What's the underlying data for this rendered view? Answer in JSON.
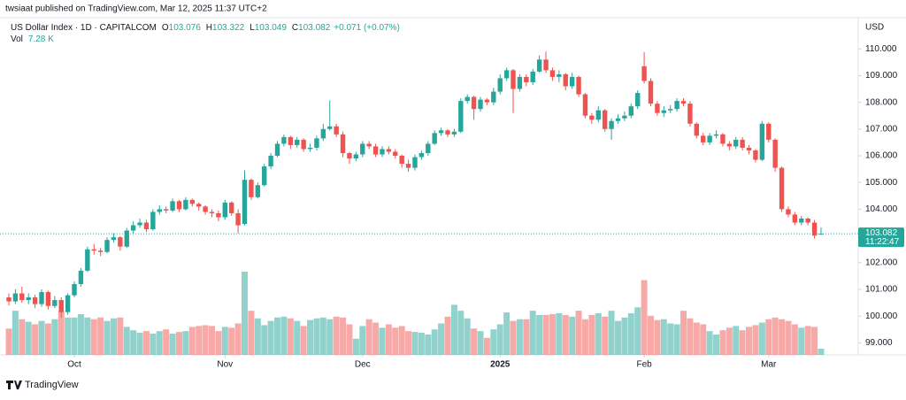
{
  "header": {
    "published": "twsiaat published on TradingView.com, Mar 12, 2025 11:37 UTC+2",
    "brand": "TradingView"
  },
  "chart_data": {
    "type": "candlestick",
    "symbol": "US Dollar Index · 1D · CAPITALCOM",
    "legend": [
      {
        "label": "O",
        "value": "103.076"
      },
      {
        "label": "H",
        "value": "103.322"
      },
      {
        "label": "L",
        "value": "103.049"
      },
      {
        "label": "C",
        "value": "103.082"
      }
    ],
    "change": "+0.071 (+0.07%)",
    "volume_label": "Vol",
    "volume_value": "7.28 K",
    "currency": "USD",
    "last_price": {
      "value": 103.082,
      "label": "103.082"
    },
    "countdown": "11:22:47",
    "up_color": "#26a69a",
    "down_color": "#ef5350",
    "grid": false,
    "ylim": [
      98.55,
      111.1
    ],
    "yticks": [
      {
        "value": 99,
        "label": "99.000"
      },
      {
        "value": 100,
        "label": "100.000"
      },
      {
        "value": 101,
        "label": "101.000"
      },
      {
        "value": 102,
        "label": "102.000"
      },
      {
        "value": 103,
        "label": "103.000"
      },
      {
        "value": 104,
        "label": "104.000"
      },
      {
        "value": 105,
        "label": "105.000"
      },
      {
        "value": 106,
        "label": "106.000"
      },
      {
        "value": 107,
        "label": "107.000"
      },
      {
        "value": 108,
        "label": "108.000"
      },
      {
        "value": 109,
        "label": "109.000"
      },
      {
        "value": 110,
        "label": "110.000"
      }
    ],
    "xticks": [
      {
        "value": 10,
        "label": "Oct"
      },
      {
        "value": 33,
        "label": "Nov"
      },
      {
        "value": 54,
        "label": "Dec"
      },
      {
        "value": 75,
        "label": "2025"
      },
      {
        "value": 97,
        "label": "Feb"
      },
      {
        "value": 116,
        "label": "Mar"
      }
    ],
    "open": [
      100.7,
      100.55,
      100.85,
      100.6,
      100.7,
      100.45,
      100.9,
      100.38,
      100.6,
      100.15,
      100.78,
      101.2,
      101.7,
      102.5,
      102.45,
      102.4,
      102.85,
      102.95,
      102.6,
      103.2,
      103.4,
      103.5,
      103.25,
      103.9,
      104.0,
      103.95,
      104.3,
      104.0,
      104.35,
      104.2,
      104.1,
      103.9,
      103.85,
      103.7,
      104.25,
      103.85,
      103.45,
      105.1,
      104.45,
      104.9,
      105.6,
      106.0,
      106.45,
      106.7,
      106.4,
      106.6,
      106.25,
      106.3,
      106.65,
      107.0,
      107.1,
      106.8,
      106.1,
      105.9,
      106.05,
      106.45,
      106.35,
      106.05,
      106.25,
      106.15,
      106.0,
      105.7,
      105.55,
      105.95,
      106.1,
      106.45,
      106.85,
      106.95,
      106.8,
      106.9,
      108.05,
      108.2,
      107.75,
      108.1,
      108.0,
      108.4,
      108.9,
      109.2,
      108.5,
      108.95,
      108.75,
      109.15,
      109.6,
      109.2,
      108.95,
      109.05,
      108.6,
      108.95,
      108.3,
      107.5,
      107.35,
      107.7,
      107.0,
      107.3,
      107.4,
      107.5,
      107.85,
      109.35,
      108.8,
      107.95,
      107.6,
      107.7,
      107.75,
      108.05,
      107.95,
      107.2,
      106.75,
      106.5,
      106.75,
      106.8,
      106.45,
      106.35,
      106.6,
      106.3,
      106.2,
      105.85,
      107.2,
      106.6,
      105.55,
      104.0,
      103.8,
      103.5,
      103.65,
      103.5,
      103.076
    ],
    "high": [
      100.85,
      101.0,
      101.1,
      100.85,
      100.8,
      101.0,
      100.95,
      100.75,
      100.7,
      100.85,
      101.3,
      101.8,
      102.6,
      102.7,
      102.55,
      102.95,
      103.1,
      103.0,
      103.3,
      103.55,
      103.65,
      103.6,
      104.0,
      104.15,
      104.1,
      104.4,
      104.35,
      104.45,
      104.4,
      104.25,
      104.15,
      104.0,
      103.95,
      104.35,
      104.3,
      104.0,
      105.45,
      105.15,
      105.0,
      105.7,
      106.1,
      106.55,
      106.8,
      106.75,
      106.7,
      106.65,
      106.45,
      106.75,
      107.2,
      108.07,
      107.2,
      106.9,
      106.15,
      106.15,
      106.55,
      106.55,
      106.45,
      106.35,
      106.35,
      106.25,
      106.05,
      105.85,
      106.05,
      106.2,
      106.55,
      106.95,
      107.05,
      107.0,
      107.0,
      108.15,
      108.3,
      108.25,
      108.2,
      108.15,
      108.55,
      109.05,
      109.3,
      109.25,
      109.05,
      109.05,
      109.25,
      109.75,
      109.9,
      109.3,
      109.2,
      109.1,
      109.1,
      109.0,
      108.35,
      107.6,
      107.85,
      107.75,
      107.4,
      107.55,
      107.65,
      107.95,
      108.45,
      109.88,
      108.9,
      108.05,
      107.85,
      107.9,
      108.15,
      108.15,
      108.05,
      107.25,
      106.85,
      106.85,
      106.95,
      106.85,
      106.55,
      106.7,
      106.7,
      106.4,
      106.25,
      107.3,
      107.25,
      106.65,
      105.6,
      104.1,
      103.9,
      103.75,
      103.7,
      103.6,
      103.322
    ],
    "low": [
      100.4,
      100.45,
      100.5,
      100.45,
      100.3,
      100.35,
      100.25,
      100.3,
      99.95,
      100.05,
      100.7,
      101.1,
      101.65,
      102.3,
      102.25,
      102.35,
      102.75,
      102.45,
      102.55,
      103.1,
      103.3,
      103.15,
      103.2,
      103.8,
      103.85,
      103.9,
      103.9,
      103.95,
      104.1,
      103.95,
      103.8,
      103.7,
      103.55,
      103.6,
      103.75,
      103.1,
      103.4,
      104.35,
      104.4,
      104.85,
      105.5,
      105.95,
      106.35,
      106.25,
      106.3,
      106.15,
      106.15,
      106.2,
      106.55,
      106.95,
      106.7,
      105.95,
      105.7,
      105.8,
      105.95,
      106.25,
      105.95,
      105.95,
      106.05,
      105.9,
      105.55,
      105.4,
      105.45,
      105.85,
      106.0,
      106.4,
      106.75,
      106.7,
      106.7,
      106.85,
      107.95,
      107.35,
      107.65,
      107.9,
      107.9,
      108.3,
      108.8,
      107.6,
      108.4,
      108.6,
      108.65,
      109.1,
      109.1,
      108.8,
      108.75,
      108.45,
      108.5,
      108.2,
      107.4,
      107.2,
      107.25,
      106.9,
      106.6,
      107.2,
      107.3,
      107.4,
      107.75,
      108.7,
      107.85,
      107.5,
      107.45,
      107.6,
      107.65,
      107.85,
      107.1,
      106.65,
      106.4,
      106.4,
      106.65,
      106.35,
      106.2,
      106.25,
      106.2,
      106.05,
      105.75,
      105.8,
      106.5,
      105.4,
      103.9,
      103.7,
      103.4,
      103.4,
      103.4,
      102.9,
      103.049
    ],
    "close": [
      100.55,
      100.85,
      100.6,
      100.7,
      100.45,
      100.9,
      100.38,
      100.6,
      100.15,
      100.78,
      101.2,
      101.7,
      102.5,
      102.45,
      102.4,
      102.85,
      102.95,
      102.6,
      103.2,
      103.4,
      103.5,
      103.25,
      103.9,
      104.0,
      103.95,
      104.3,
      104.0,
      104.35,
      104.2,
      104.1,
      103.9,
      103.85,
      103.7,
      104.25,
      103.85,
      103.4,
      105.1,
      104.45,
      104.9,
      105.6,
      106.0,
      106.45,
      106.7,
      106.4,
      106.6,
      106.25,
      106.3,
      106.65,
      107.0,
      107.1,
      106.8,
      106.1,
      105.9,
      106.05,
      106.45,
      106.35,
      106.05,
      106.25,
      106.15,
      106.0,
      105.7,
      105.55,
      105.95,
      106.1,
      106.45,
      106.85,
      106.95,
      106.8,
      106.9,
      108.05,
      108.2,
      107.75,
      108.1,
      108.0,
      108.4,
      108.9,
      109.2,
      108.5,
      108.95,
      108.75,
      109.15,
      109.6,
      109.2,
      108.95,
      109.05,
      108.6,
      108.95,
      108.3,
      107.5,
      107.35,
      107.7,
      107.0,
      107.3,
      107.4,
      107.5,
      107.85,
      108.35,
      108.8,
      107.95,
      107.6,
      107.7,
      107.75,
      108.05,
      107.95,
      107.2,
      106.75,
      106.5,
      106.75,
      106.8,
      106.45,
      106.35,
      106.6,
      106.3,
      106.2,
      105.85,
      107.2,
      106.6,
      105.55,
      104.0,
      103.8,
      103.5,
      103.65,
      103.5,
      103.011,
      103.082
    ],
    "volume": [
      31000,
      52000,
      42000,
      39000,
      36000,
      40000,
      37000,
      42000,
      52000,
      44000,
      44000,
      48000,
      44000,
      42000,
      44000,
      40000,
      43000,
      44000,
      33000,
      29000,
      26000,
      28000,
      25000,
      28000,
      30000,
      25000,
      27000,
      28000,
      33000,
      34000,
      35000,
      34000,
      28000,
      33000,
      32000,
      37000,
      98000,
      52000,
      43000,
      35000,
      40000,
      44000,
      45000,
      43000,
      40000,
      34000,
      41000,
      43000,
      44000,
      42000,
      45000,
      44000,
      36000,
      19000,
      34000,
      42000,
      38000,
      32000,
      36000,
      32000,
      34000,
      28000,
      27000,
      26000,
      24000,
      30000,
      37000,
      45000,
      59000,
      52000,
      43000,
      31000,
      28000,
      20000,
      30000,
      36000,
      50000,
      40000,
      42000,
      42000,
      52000,
      47000,
      47000,
      48000,
      49000,
      47000,
      45000,
      52000,
      42000,
      47000,
      49000,
      45000,
      52000,
      40000,
      44000,
      49000,
      56000,
      88000,
      46000,
      41000,
      42000,
      37000,
      36000,
      52000,
      43000,
      38000,
      36000,
      28000,
      24000,
      29000,
      32000,
      34000,
      29000,
      33000,
      35000,
      38000,
      42000,
      44000,
      42000,
      40000,
      36000,
      32000,
      34000,
      33000,
      7280
    ]
  }
}
